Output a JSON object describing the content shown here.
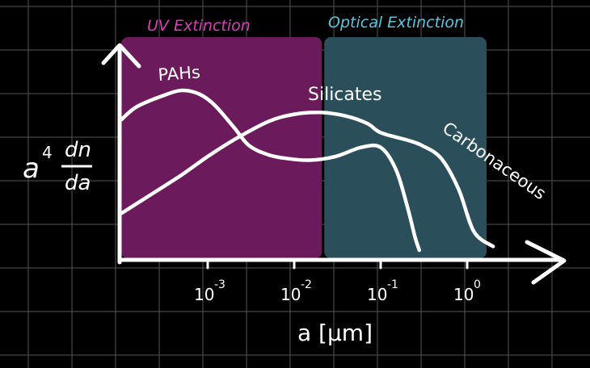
{
  "chart_data": {
    "type": "line",
    "title": "",
    "xlabel": "a [μm]",
    "ylabel": "a⁴ dn/da",
    "xscale": "log",
    "xlim": [
      0.0001,
      1
    ],
    "grid": true,
    "x_ticks": [
      {
        "value": 0.001,
        "base": "10",
        "exp": "-3"
      },
      {
        "value": 0.01,
        "base": "10",
        "exp": "-2"
      },
      {
        "value": 0.1,
        "base": "10",
        "exp": "-1"
      },
      {
        "value": 1,
        "base": "10",
        "exp": "0"
      }
    ],
    "regions": [
      {
        "label": "UV Extinction",
        "x_start": 0.0001,
        "x_end": 0.02,
        "color": "#6b1a5c",
        "label_color": "#d83fb8"
      },
      {
        "label": "Optical Extinction",
        "x_start": 0.02,
        "x_end": 1.5,
        "color": "#2a4f5a",
        "label_color": "#5bc6dd"
      }
    ],
    "series": [
      {
        "name": "PAHs",
        "x": [
          0.0001,
          0.00015,
          0.0003,
          0.0005,
          0.0008,
          0.0012,
          0.002,
          0.003,
          0.005,
          0.008,
          0.015,
          0.03,
          0.06,
          0.1,
          0.15,
          0.2,
          0.25,
          0.28
        ],
        "y": [
          0.71,
          0.78,
          0.84,
          0.87,
          0.85,
          0.79,
          0.67,
          0.57,
          0.52,
          0.5,
          0.49,
          0.51,
          0.56,
          0.56,
          0.44,
          0.25,
          0.07,
          0.0
        ]
      },
      {
        "name": "Silicates",
        "x": [
          0.0001,
          0.0002,
          0.0005,
          0.001,
          0.002,
          0.005,
          0.01,
          0.02,
          0.04,
          0.07,
          0.1,
          0.2,
          0.3,
          0.5,
          0.8,
          1.2,
          2.0
        ],
        "y": [
          0.2,
          0.29,
          0.41,
          0.51,
          0.6,
          0.7,
          0.74,
          0.75,
          0.73,
          0.69,
          0.64,
          0.6,
          0.57,
          0.5,
          0.33,
          0.1,
          0.02
        ]
      }
    ],
    "annotations": [
      {
        "text": "PAHs",
        "series": "PAHs"
      },
      {
        "text": "Silicates",
        "series": "Silicates"
      },
      {
        "text": "Carbonaceous",
        "series": "Silicates"
      }
    ]
  }
}
